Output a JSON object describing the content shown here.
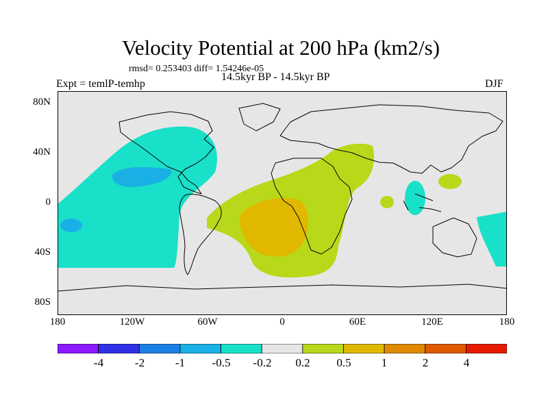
{
  "title": "Velocity Potential at 200 hPa (km2/s)",
  "stats": "rmsd= 0.253403 diff= 1.54246e-05",
  "period": "14.5kyr BP - 14.5kyr BP",
  "experiment": "Expt = temlP-temhp",
  "season": "DJF",
  "map": {
    "background": "#e6e6e6",
    "y_ticks": [
      "80N",
      "40N",
      "0",
      "40S",
      "80S"
    ],
    "x_ticks": [
      "180",
      "120W",
      "60W",
      "0",
      "60E",
      "120E",
      "180"
    ]
  },
  "colorbar": {
    "colors": [
      "#8c1aff",
      "#3030e6",
      "#1a80e6",
      "#1ab0e6",
      "#19e0c8",
      "#e6e6e6",
      "#b8d91a",
      "#e0b800",
      "#e08a00",
      "#e05a00",
      "#e61a00"
    ],
    "labels": [
      "-4",
      "-2",
      "-1",
      "-0.5",
      "-0.2",
      "0.2",
      "0.5",
      "1",
      "2",
      "4"
    ]
  }
}
